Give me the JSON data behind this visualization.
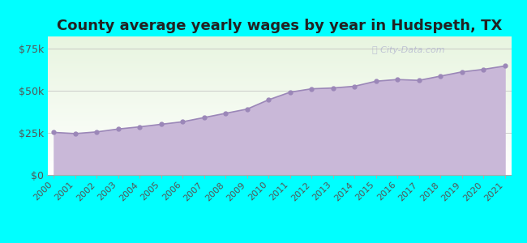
{
  "title": "County average yearly wages by year in Hudspeth, TX",
  "years": [
    2000,
    2001,
    2002,
    2003,
    2004,
    2005,
    2006,
    2007,
    2008,
    2009,
    2010,
    2011,
    2012,
    2013,
    2014,
    2015,
    2016,
    2017,
    2018,
    2019,
    2020,
    2021
  ],
  "values": [
    25200,
    24500,
    25500,
    27200,
    28500,
    30000,
    31500,
    34000,
    36500,
    39000,
    44500,
    49000,
    51000,
    51500,
    52500,
    55500,
    56500,
    56000,
    58500,
    61000,
    62500,
    64500
  ],
  "fill_color": "#C9B8D8",
  "line_color": "#9B87B8",
  "marker_color": "#9B87B8",
  "bg_outer_color": "#00FFFF",
  "bg_inner_top_color": "#E8F5E0",
  "bg_inner_bottom_color": "#FFFFFF",
  "ytick_labels": [
    "$0",
    "$25k",
    "$50k",
    "$75k"
  ],
  "ytick_values": [
    0,
    25000,
    50000,
    75000
  ],
  "ylim": [
    0,
    82000
  ],
  "watermark": "City-Data.com",
  "title_fontsize": 13,
  "tick_fontsize": 9
}
